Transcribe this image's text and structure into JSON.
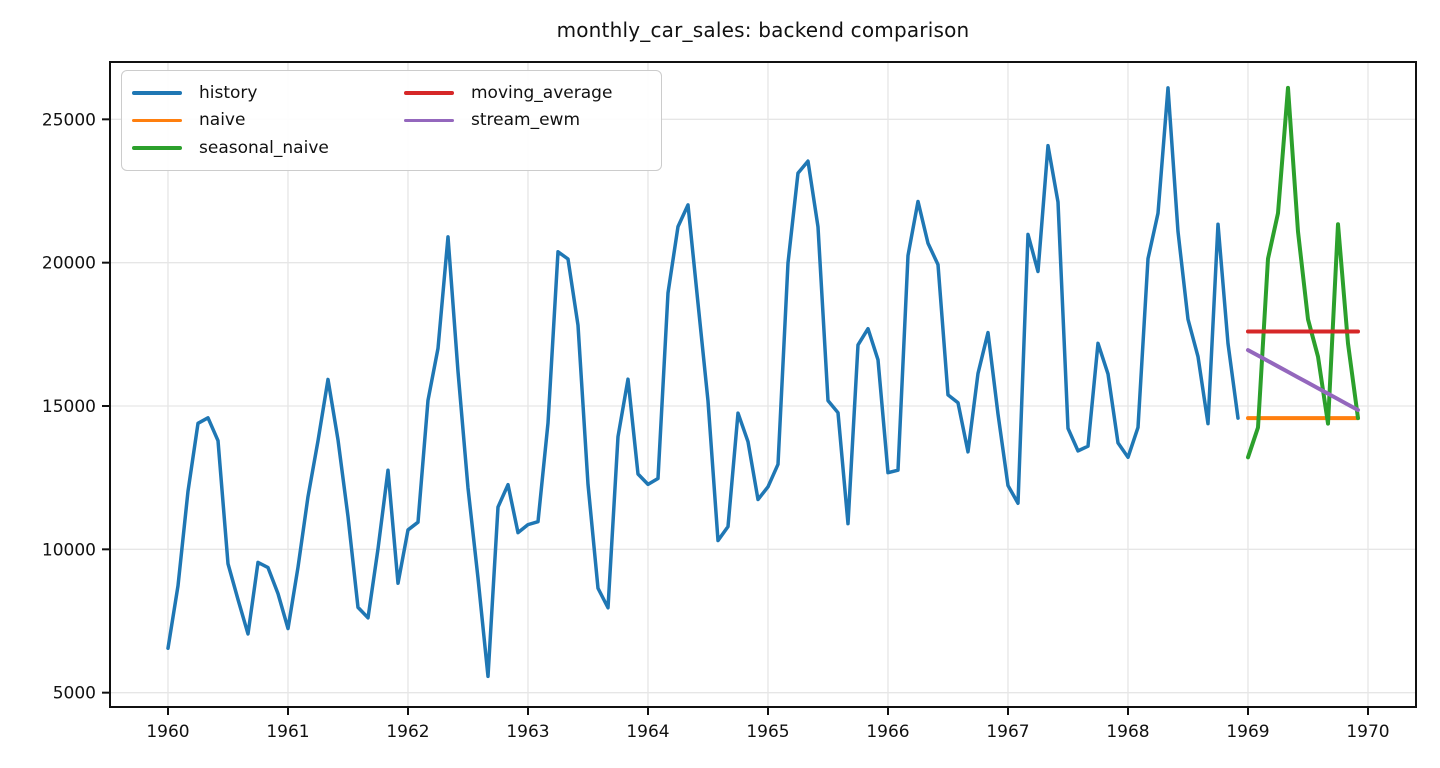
{
  "chart_data": {
    "type": "line",
    "title": "monthly_car_sales: backend comparison",
    "xlabel": "",
    "ylabel": "",
    "grid": true,
    "legend_position": "upper left",
    "x_axis": {
      "tick_labels": [
        "1960",
        "1961",
        "1962",
        "1963",
        "1964",
        "1965",
        "1966",
        "1967",
        "1968",
        "1969",
        "1970"
      ],
      "tick_values": [
        1960,
        1961,
        1962,
        1963,
        1964,
        1965,
        1966,
        1967,
        1968,
        1969,
        1970
      ],
      "lim": [
        1959.5167,
        1970.4
      ]
    },
    "y_axis": {
      "tick_labels": [
        "5000",
        "10000",
        "15000",
        "20000",
        "25000"
      ],
      "tick_values": [
        5000,
        10000,
        15000,
        20000,
        25000
      ],
      "lim": [
        4500,
        27000
      ]
    },
    "series": [
      {
        "name": "history",
        "color": "#1f77b4",
        "x_start": 1960.0,
        "x_step": 0.0833333,
        "values": [
          6550,
          8728,
          12026,
          14395,
          14587,
          13791,
          9498,
          8251,
          7049,
          9545,
          9364,
          8456,
          7237,
          9374,
          11837,
          13784,
          15926,
          13821,
          11143,
          7975,
          7610,
          10015,
          12759,
          8816,
          10677,
          10947,
          15200,
          17010,
          20900,
          16205,
          12143,
          8997,
          5568,
          11474,
          12256,
          10583,
          10862,
          10965,
          14405,
          20379,
          20128,
          17816,
          12268,
          8642,
          7962,
          13932,
          15936,
          12628,
          12267,
          12470,
          18944,
          21259,
          22015,
          18581,
          15175,
          10306,
          10792,
          14752,
          13754,
          11738,
          12181,
          12965,
          19990,
          23125,
          23541,
          21247,
          15189,
          14767,
          10895,
          17130,
          17697,
          16611,
          12674,
          12760,
          20249,
          22135,
          20677,
          19933,
          15388,
          15113,
          13401,
          16135,
          17562,
          14720,
          12225,
          11608,
          20985,
          19692,
          24081,
          22114,
          14220,
          13434,
          13598,
          17187,
          16119,
          13713,
          13210,
          14251,
          20139,
          21725,
          26099,
          21084,
          18024,
          16722,
          14385,
          21342,
          17180,
          14577
        ]
      },
      {
        "name": "naive",
        "color": "#ff7f0e",
        "x_start": 1969.0,
        "x_step": 0.0833333,
        "values": [
          14577,
          14577,
          14577,
          14577,
          14577,
          14577,
          14577,
          14577,
          14577,
          14577,
          14577,
          14577
        ]
      },
      {
        "name": "seasonal_naive",
        "color": "#2ca02c",
        "x_start": 1969.0,
        "x_step": 0.0833333,
        "values": [
          13210,
          14251,
          20139,
          21725,
          26099,
          21084,
          18024,
          16722,
          14385,
          21342,
          17180,
          14577
        ]
      },
      {
        "name": "moving_average",
        "color": "#d62728",
        "x_start": 1969.0,
        "x_step": 0.0833333,
        "values": [
          17600,
          17600,
          17600,
          17600,
          17600,
          17600,
          17600,
          17600,
          17600,
          17600,
          17600,
          17600
        ]
      },
      {
        "name": "stream_ewm",
        "color": "#9467bd",
        "x_start": 1969.0,
        "x_step": 0.0833333,
        "values": [
          16950,
          16760,
          16570,
          16380,
          16190,
          16000,
          15810,
          15620,
          15430,
          15240,
          15050,
          14860
        ]
      }
    ]
  }
}
